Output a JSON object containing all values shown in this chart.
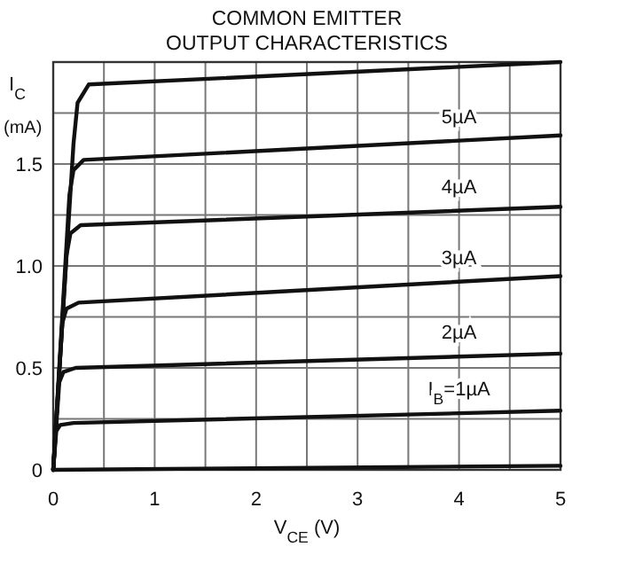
{
  "chart_data": {
    "type": "line",
    "title": "COMMON EMITTER",
    "subtitle": "OUTPUT CHARACTERISTICS",
    "xlabel": "V$_{CE}$ (V)",
    "ylabel": "I$_{C}$ (mA)",
    "xlim": [
      0,
      5
    ],
    "ylim": [
      0,
      2
    ],
    "xticks": [
      0,
      {
        "value": 0.5,
        "label": null
      },
      1,
      {
        "value": 1.5,
        "label": null
      },
      2,
      {
        "value": 2.5,
        "label": null
      },
      3,
      {
        "value": 3.5,
        "label": null
      },
      4,
      {
        "value": 4.5,
        "label": null
      },
      5
    ],
    "yticks": [
      0,
      {
        "value": 0.25,
        "label": null
      },
      0.5,
      {
        "value": 0.75,
        "label": null
      },
      {
        "value": 1,
        "label": "1.0"
      },
      {
        "value": 1.25,
        "label": null
      },
      1.5,
      {
        "value": 1.75,
        "label": null
      },
      {
        "value": 2,
        "label": null
      }
    ],
    "grid": true,
    "marker": "none",
    "line_style": "solid",
    "series": [
      {
        "color": "#111111",
        "x": [
          0,
          0.2,
          0.24,
          0.35,
          5
        ],
        "values": [
          0,
          1.6,
          1.8,
          1.89,
          2.0
        ]
      },
      {
        "name": "5µA",
        "color": "#111111",
        "x": [
          0,
          0.16,
          0.2,
          0.3,
          5
        ],
        "values": [
          0,
          1.35,
          1.47,
          1.52,
          1.64
        ]
      },
      {
        "name": "4µA",
        "color": "#111111",
        "x": [
          0,
          0.13,
          0.17,
          0.27,
          5
        ],
        "values": [
          0,
          1.05,
          1.16,
          1.2,
          1.29
        ]
      },
      {
        "name": "3µA",
        "color": "#111111",
        "x": [
          0,
          0.09,
          0.13,
          0.25,
          5
        ],
        "values": [
          0,
          0.72,
          0.79,
          0.82,
          0.95
        ]
      },
      {
        "name": "2µA",
        "color": "#111111",
        "x": [
          0,
          0.06,
          0.1,
          0.22,
          5
        ],
        "values": [
          0,
          0.43,
          0.48,
          0.5,
          0.57
        ]
      },
      {
        "name": "I$_{B}$=1µA",
        "color": "#111111",
        "x": [
          0,
          0.03,
          0.07,
          0.2,
          5
        ],
        "values": [
          0,
          0.19,
          0.22,
          0.23,
          0.29
        ]
      },
      {
        "color": "#111111",
        "x": [
          0,
          5
        ],
        "values": [
          0,
          0.02
        ]
      }
    ]
  }
}
